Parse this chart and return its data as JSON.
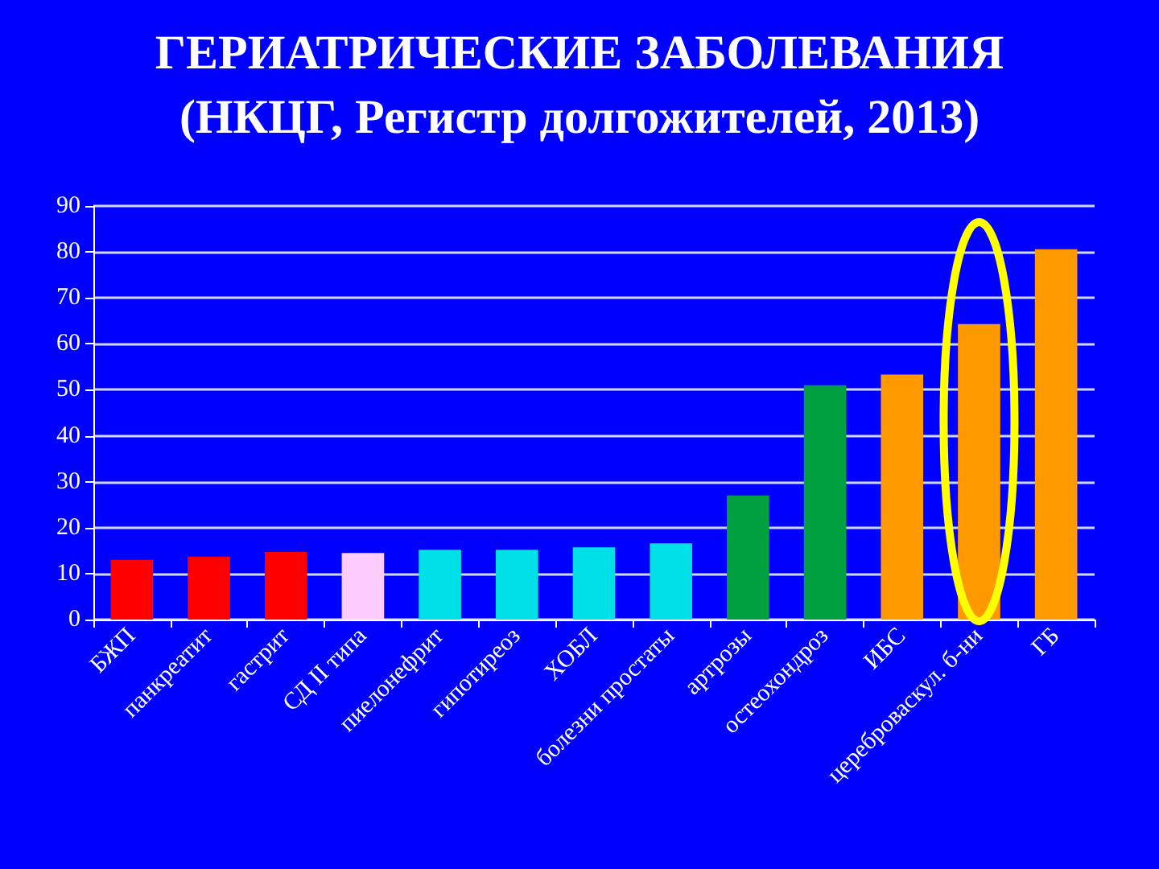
{
  "chart_data": {
    "type": "bar",
    "title": "ГЕРИАТРИЧЕСКИЕ ЗАБОЛЕВАНИЯ\n(НКЦГ, Регистр долгожителей, 2013)",
    "categories": [
      "БЖП",
      "панкреатит",
      "гастрит",
      "СД II типа",
      "пиелонефрит",
      "гипотиреоз",
      "ХОБЛ",
      "болезни простаты",
      "артрозы",
      "остеохондроз",
      "ИБС",
      "цереброваскул. б-ни",
      "ГБ"
    ],
    "values": [
      13,
      13.7,
      14.7,
      14.5,
      15.2,
      15.2,
      15.7,
      16.6,
      27,
      51,
      53.3,
      64.3,
      80.6
    ],
    "colors": [
      "#ff0000",
      "#ff0000",
      "#ff0000",
      "#ffccff",
      "#00e0e8",
      "#00e0e8",
      "#00e0e8",
      "#00e0e8",
      "#00a040",
      "#00a040",
      "#ff9900",
      "#ff9900",
      "#ff9900"
    ],
    "ylim": [
      0,
      90
    ],
    "yticks": [
      0,
      10,
      20,
      30,
      40,
      50,
      60,
      70,
      80,
      90
    ],
    "grid": "y"
  }
}
